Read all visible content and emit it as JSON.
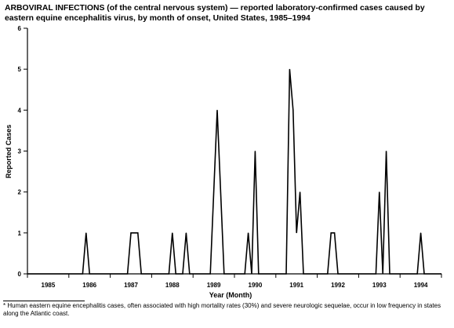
{
  "title": {
    "lead": "ARBOVIRAL INFECTIONS (of the central nervous system)",
    "rest": " — reported laboratory-confirmed cases caused by eastern equine encephalitis virus, by month of onset, United States, 1985–1994"
  },
  "footnote": "* Human eastern equine encephalitis cases, often associated with high mortality rates (30%) and severe neurologic sequelae, occur in low frequency in states along the Atlantic coast.",
  "chart_data": {
    "type": "line",
    "xlabel": "Year (Month)",
    "ylabel": "Reported Cases",
    "ylim": [
      0,
      6
    ],
    "yticks": [
      0,
      1,
      2,
      3,
      4,
      5,
      6
    ],
    "xlim": [
      0,
      120
    ],
    "year_labels": [
      "1985",
      "1986",
      "1987",
      "1988",
      "1989",
      "1990",
      "1991",
      "1992",
      "1993",
      "1994"
    ],
    "grid": false,
    "line_color": "#000000",
    "series": [
      {
        "name": "",
        "points": [
          [
            0,
            0
          ],
          [
            16,
            0
          ],
          [
            17,
            1
          ],
          [
            18,
            0
          ],
          [
            29,
            0
          ],
          [
            30,
            1
          ],
          [
            32,
            1
          ],
          [
            33,
            0
          ],
          [
            41,
            0
          ],
          [
            42,
            1
          ],
          [
            43,
            0
          ],
          [
            45,
            0
          ],
          [
            46,
            1
          ],
          [
            47,
            0
          ],
          [
            53,
            0
          ],
          [
            55,
            4
          ],
          [
            57,
            0
          ],
          [
            63,
            0
          ],
          [
            64,
            1
          ],
          [
            65,
            0
          ],
          [
            66,
            3
          ],
          [
            67,
            0
          ],
          [
            75,
            0
          ],
          [
            76,
            5
          ],
          [
            77,
            4
          ],
          [
            78,
            1
          ],
          [
            79,
            2
          ],
          [
            80,
            0
          ],
          [
            87,
            0
          ],
          [
            88,
            1
          ],
          [
            89,
            1
          ],
          [
            90,
            0
          ],
          [
            101,
            0
          ],
          [
            102,
            2
          ],
          [
            103,
            0
          ],
          [
            104,
            3
          ],
          [
            105,
            0
          ],
          [
            113,
            0
          ],
          [
            114,
            1
          ],
          [
            115,
            0
          ],
          [
            120,
            0
          ]
        ]
      }
    ]
  }
}
